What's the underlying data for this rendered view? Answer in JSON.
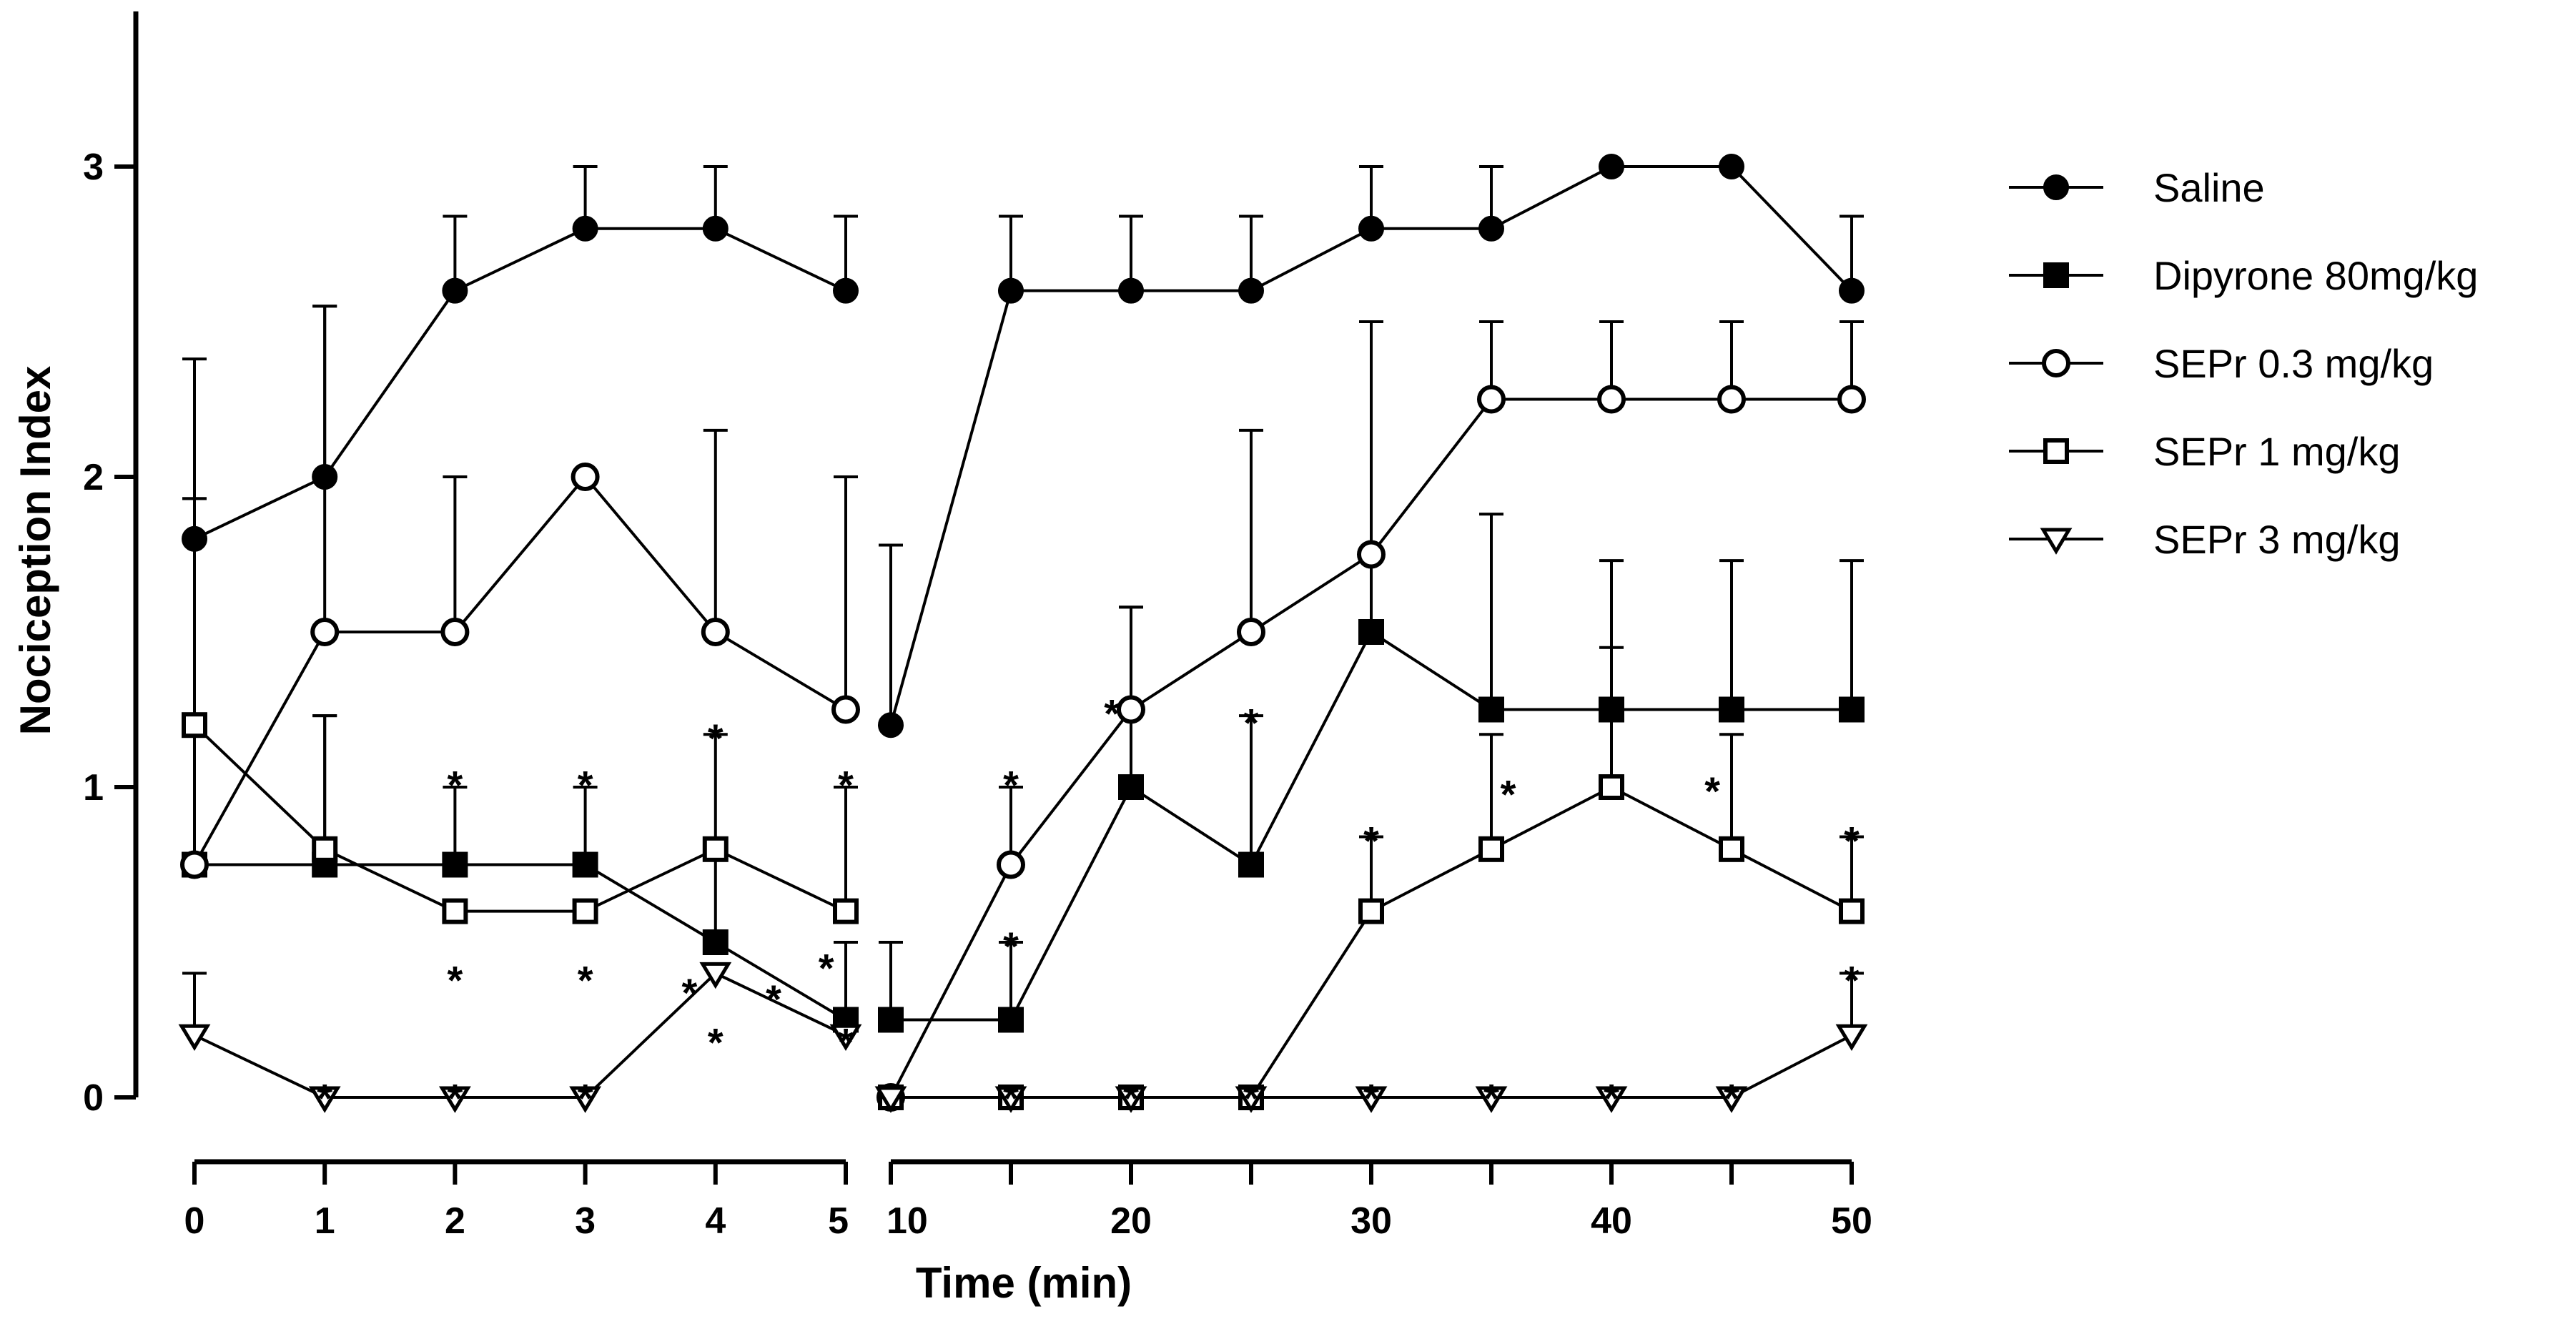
{
  "chart_data": {
    "type": "line",
    "title": "",
    "xlabel": "Time (min)",
    "ylabel": "Nociception Index",
    "ylim": [
      0,
      3.5
    ],
    "yticks": [
      0,
      1,
      2,
      3
    ],
    "x_segments": [
      {
        "range": [
          0,
          5
        ],
        "ticks": [
          0,
          1,
          2,
          3,
          4,
          5
        ],
        "tick_labels": [
          "0",
          "1",
          "2",
          "3",
          "4",
          "5"
        ]
      },
      {
        "range": [
          10,
          50
        ],
        "ticks": [
          10,
          15,
          20,
          25,
          30,
          35,
          40,
          45,
          50
        ],
        "tick_labels": [
          "10",
          "",
          "20",
          "",
          "30",
          "",
          "40",
          "",
          "50"
        ]
      }
    ],
    "x": [
      0,
      1,
      2,
      3,
      4,
      5,
      10,
      15,
      20,
      25,
      30,
      35,
      40,
      45,
      50
    ],
    "legend": {
      "position": "top-right"
    },
    "series": [
      {
        "name": "Saline",
        "marker": "circle",
        "fill": "filled",
        "values": [
          1.8,
          2.0,
          2.6,
          2.8,
          2.8,
          2.6,
          1.2,
          2.6,
          2.6,
          2.6,
          2.8,
          2.8,
          3.0,
          3.0,
          2.6
        ],
        "err": [
          0.58,
          0.55,
          0.24,
          0.2,
          0.2,
          0.24,
          0.58,
          0.24,
          0.24,
          0.24,
          0.2,
          0.2,
          0,
          0,
          0.24
        ]
      },
      {
        "name": "Dipyrone 80mg/kg",
        "marker": "square",
        "fill": "filled",
        "values": [
          0.75,
          0.75,
          0.75,
          0.75,
          0.5,
          0.25,
          0.25,
          0.25,
          1.0,
          0.75,
          1.5,
          1.25,
          1.25,
          1.25,
          1.25
        ],
        "err": [
          0,
          0.48,
          0.25,
          0.25,
          0.29,
          0.25,
          0.25,
          0.25,
          0.58,
          0.48,
          1.0,
          0.63,
          0.48,
          0.48,
          0.48
        ]
      },
      {
        "name": "SEPr 0.3 mg/kg",
        "marker": "circle",
        "fill": "open",
        "values": [
          0.75,
          1.5,
          1.5,
          2.0,
          1.5,
          1.25,
          0,
          0.75,
          1.25,
          1.5,
          1.75,
          2.25,
          2.25,
          2.25,
          2.25
        ],
        "err": [
          1.18,
          1.05,
          0.5,
          0,
          0.65,
          0.75,
          0,
          0.25,
          0.33,
          0.65,
          0.75,
          0.25,
          0.25,
          0.25,
          0.25
        ]
      },
      {
        "name": "SEPr 1 mg/kg",
        "marker": "square",
        "fill": "open",
        "values": [
          1.2,
          0.8,
          0.6,
          0.6,
          0.8,
          0.6,
          0,
          0,
          0,
          0,
          0.6,
          0.8,
          1.0,
          0.8,
          0.6
        ],
        "err": [
          0.73,
          0.43,
          0,
          0,
          0.37,
          0.4,
          0,
          0,
          0,
          0,
          0.24,
          0.37,
          0.45,
          0.37,
          0.24
        ]
      },
      {
        "name": "SEPr 3 mg/kg",
        "marker": "triangle-down",
        "fill": "open",
        "values": [
          0.2,
          0,
          0,
          0,
          0.4,
          0.2,
          0,
          0,
          0,
          0,
          0,
          0,
          0,
          0,
          0.2
        ],
        "err": [
          0.2,
          0,
          0,
          0,
          0,
          0,
          0,
          0,
          0,
          0,
          0,
          0,
          0,
          0,
          0.2
        ]
      }
    ],
    "annotations": [
      {
        "text": "*",
        "x": 2,
        "y": 1.05
      },
      {
        "text": "*",
        "x": 3,
        "y": 1.05
      },
      {
        "text": "*",
        "x": 4,
        "y": 1.2
      },
      {
        "text": "*",
        "x": 5,
        "y": 1.05
      },
      {
        "text": "*",
        "x": 2,
        "y": 0.42
      },
      {
        "text": "*",
        "x": 3,
        "y": 0.42
      },
      {
        "text": "*",
        "x": 3.8,
        "y": 0.38
      },
      {
        "text": "*",
        "x": 4,
        "y": 0.22
      },
      {
        "text": "*",
        "x": 4.85,
        "y": 0.46
      },
      {
        "text": "*",
        "x": 5.12,
        "y": 0.36
      },
      {
        "text": "*",
        "x": 1,
        "y": 0.04
      },
      {
        "text": "*",
        "x": 2,
        "y": 0.04
      },
      {
        "text": "*",
        "x": 3,
        "y": 0.04
      },
      {
        "text": "*",
        "x": 5,
        "y": 0.22
      },
      {
        "text": "*",
        "x": 15,
        "y": 1.05
      },
      {
        "text": "*",
        "x": 15,
        "y": 0.53
      },
      {
        "text": "*",
        "x": 15,
        "y": 0.04
      },
      {
        "text": "*",
        "x": 19.2,
        "y": 1.28
      },
      {
        "text": "*",
        "x": 20,
        "y": 0.04
      },
      {
        "text": "*",
        "x": 25,
        "y": 1.25
      },
      {
        "text": "*",
        "x": 25,
        "y": 0.04
      },
      {
        "text": "*",
        "x": 30,
        "y": 0.87
      },
      {
        "text": "*",
        "x": 30,
        "y": 0.04
      },
      {
        "text": "*",
        "x": 35.7,
        "y": 1.02
      },
      {
        "text": "*",
        "x": 35,
        "y": 0.04
      },
      {
        "text": "*",
        "x": 40,
        "y": 0.04
      },
      {
        "text": "*",
        "x": 44.2,
        "y": 1.03
      },
      {
        "text": "*",
        "x": 45,
        "y": 0.04
      },
      {
        "text": "*",
        "x": 50,
        "y": 0.87
      },
      {
        "text": "*",
        "x": 50,
        "y": 0.42
      }
    ]
  }
}
